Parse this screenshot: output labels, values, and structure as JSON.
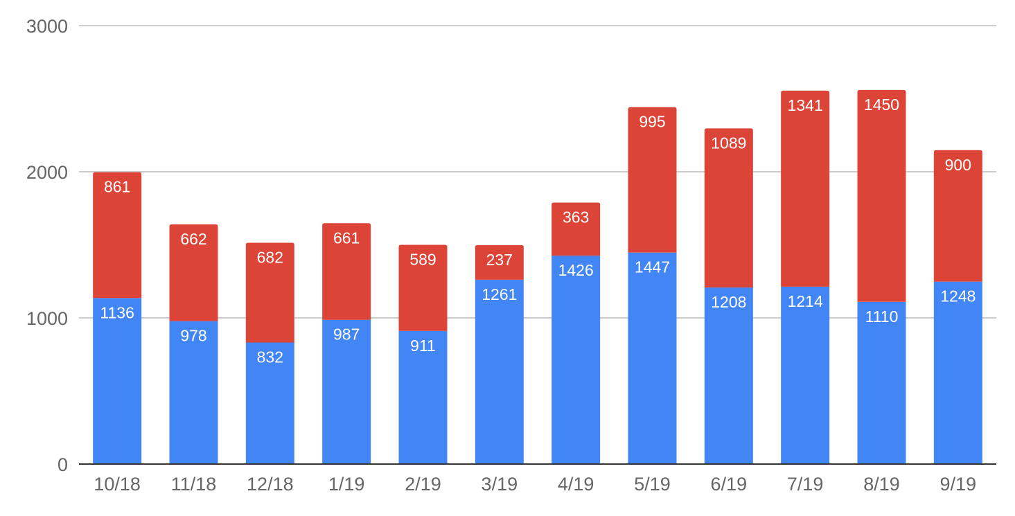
{
  "chart_data": {
    "type": "bar",
    "stacked": true,
    "categories": [
      "10/18",
      "11/18",
      "12/18",
      "1/19",
      "2/19",
      "3/19",
      "4/19",
      "5/19",
      "6/19",
      "7/19",
      "8/19",
      "9/19"
    ],
    "series": [
      {
        "color": "#4285f4",
        "values": [
          1136,
          978,
          832,
          987,
          911,
          1261,
          1426,
          1447,
          1208,
          1214,
          1110,
          1248
        ]
      },
      {
        "color": "#db4437",
        "values": [
          861,
          662,
          682,
          661,
          589,
          237,
          363,
          995,
          1089,
          1341,
          1450,
          900
        ]
      }
    ],
    "ylim": [
      0,
      3000
    ],
    "yticks": [
      0,
      1000,
      2000,
      3000
    ],
    "grid": true,
    "legend": "none",
    "data_labels": true,
    "title": "",
    "xlabel": "",
    "ylabel": ""
  }
}
